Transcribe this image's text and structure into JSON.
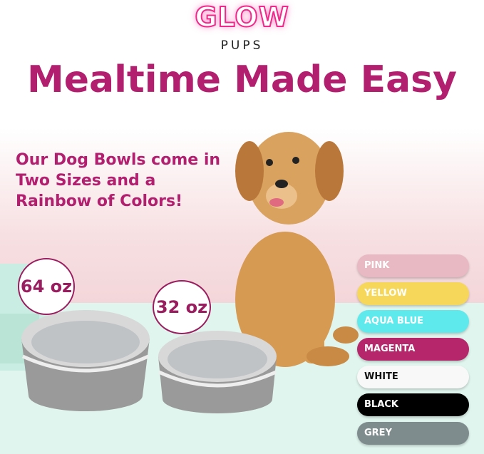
{
  "brand": {
    "name": "GLOW",
    "tagline": "PUPS"
  },
  "headline": "Mealtime Made Easy",
  "subheadline": "Our Dog Bowls come in Two Sizes and a Rainbow of Colors!",
  "sizes": [
    {
      "label": "64 oz"
    },
    {
      "label": "32 oz"
    }
  ],
  "colors": [
    {
      "label": "PINK",
      "bg": "#e8b9c2",
      "fg": "#ffffff"
    },
    {
      "label": "YELLOW",
      "bg": "#f6d75a",
      "fg": "#ffffff"
    },
    {
      "label": "AQUA BLUE",
      "bg": "#5ee9ec",
      "fg": "#ffffff"
    },
    {
      "label": "MAGENTA",
      "bg": "#b5266a",
      "fg": "#ffffff"
    },
    {
      "label": "WHITE",
      "bg": "#f8f8f8",
      "fg": "#111111"
    },
    {
      "label": "BLACK",
      "bg": "#000000",
      "fg": "#ffffff"
    },
    {
      "label": "GREY",
      "bg": "#7f8c8d",
      "fg": "#ffffff"
    }
  ],
  "accent": "#b31f6f"
}
